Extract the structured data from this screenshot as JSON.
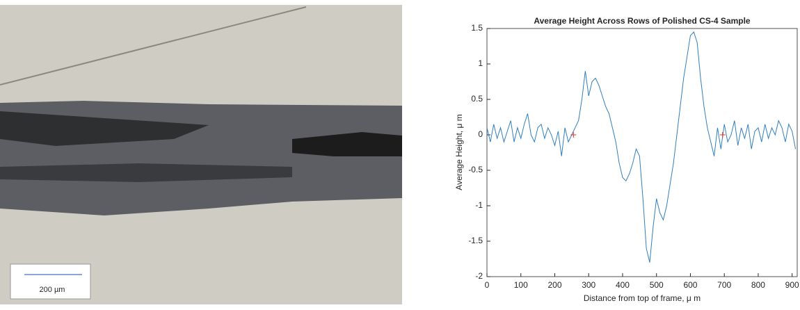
{
  "photo": {
    "scale_bar": "200 µm"
  },
  "chart_data": {
    "type": "line",
    "title": "Average Height Across Rows of Polished CS-4 Sample",
    "xlabel": "Distance from top of frame, μ m",
    "ylabel": "Average Height, μ m",
    "x": [
      0,
      10,
      20,
      30,
      40,
      50,
      60,
      70,
      80,
      90,
      100,
      110,
      120,
      130,
      140,
      150,
      160,
      170,
      180,
      190,
      200,
      210,
      220,
      230,
      240,
      250,
      260,
      270,
      280,
      290,
      300,
      310,
      320,
      330,
      340,
      350,
      360,
      370,
      380,
      390,
      400,
      410,
      420,
      430,
      440,
      450,
      460,
      470,
      480,
      490,
      500,
      510,
      520,
      530,
      540,
      550,
      560,
      570,
      580,
      590,
      600,
      610,
      620,
      630,
      640,
      650,
      660,
      670,
      680,
      690,
      700,
      710,
      720,
      730,
      740,
      750,
      760,
      770,
      780,
      790,
      800,
      810,
      820,
      830,
      840,
      850,
      860,
      870,
      880,
      890,
      900,
      910
    ],
    "values": [
      0.1,
      -0.1,
      0.15,
      -0.05,
      0.1,
      -0.1,
      0.05,
      0.2,
      -0.1,
      0.1,
      -0.05,
      0.15,
      0.3,
      0.0,
      -0.1,
      0.1,
      0.15,
      -0.05,
      0.1,
      0.0,
      -0.15,
      0.05,
      -0.3,
      0.1,
      -0.1,
      0.0,
      0.1,
      0.2,
      0.5,
      0.9,
      0.55,
      0.75,
      0.8,
      0.7,
      0.55,
      0.4,
      0.3,
      0.1,
      -0.1,
      -0.4,
      -0.6,
      -0.65,
      -0.55,
      -0.4,
      -0.2,
      -0.3,
      -0.9,
      -1.6,
      -1.8,
      -1.3,
      -0.9,
      -1.1,
      -1.2,
      -1.0,
      -0.7,
      -0.4,
      0.0,
      0.4,
      0.8,
      1.1,
      1.4,
      1.45,
      1.3,
      0.8,
      0.4,
      0.1,
      -0.1,
      -0.3,
      0.1,
      -0.2,
      0.15,
      -0.1,
      0.0,
      0.2,
      -0.15,
      0.1,
      -0.05,
      0.15,
      -0.2,
      0.05,
      0.1,
      -0.1,
      0.15,
      -0.05,
      0.1,
      0.0,
      0.2,
      0.1,
      -0.1,
      0.15,
      0.05,
      -0.2
    ],
    "color": "#2f7fc1",
    "markers": {
      "x": [
        255,
        695
      ],
      "values": [
        0,
        0
      ],
      "color": "#e0301e"
    },
    "xlim": [
      0,
      915
    ],
    "xticks": [
      0,
      100,
      200,
      300,
      400,
      500,
      600,
      700,
      800,
      900
    ],
    "ylim": [
      -2,
      1.5
    ],
    "yticks": [
      -2,
      -1.5,
      -1,
      -0.5,
      0,
      0.5,
      1,
      1.5
    ]
  }
}
